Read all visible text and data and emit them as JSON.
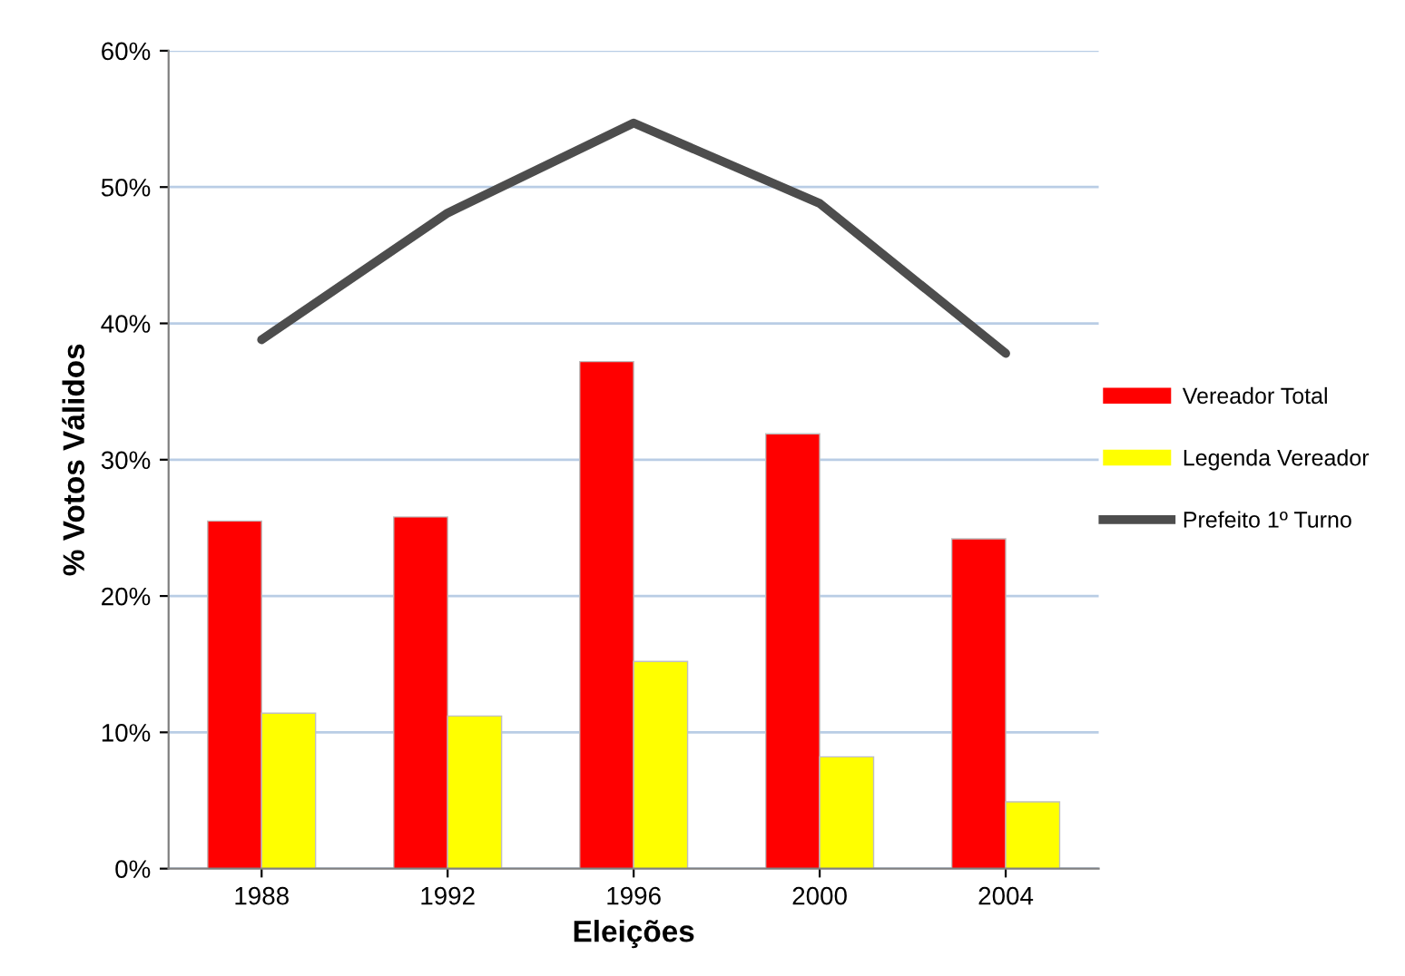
{
  "chart_data": {
    "type": "bar",
    "xlabel": "Eleições",
    "ylabel": "% Votos Válidos",
    "categories": [
      "1988",
      "1992",
      "1996",
      "2000",
      "2004"
    ],
    "series": [
      {
        "name": "Vereador Total",
        "color": "#ff0000",
        "values": [
          25.5,
          25.8,
          37.2,
          31.9,
          24.2
        ]
      },
      {
        "name": "Legenda Vereador",
        "color": "#ffff00",
        "values": [
          11.4,
          11.2,
          15.2,
          8.2,
          4.9
        ]
      },
      {
        "name": "Prefeito 1º Turno",
        "color": "#4d4d4d",
        "type": "line",
        "values": [
          38.8,
          48.1,
          54.7,
          48.8,
          37.8
        ]
      }
    ],
    "ylim": [
      0,
      60
    ],
    "yticks": [
      {
        "value": 0,
        "label": "0%"
      },
      {
        "value": 10,
        "label": "10%"
      },
      {
        "value": 20,
        "label": "20%"
      },
      {
        "value": 30,
        "label": "30%"
      },
      {
        "value": 40,
        "label": "40%"
      },
      {
        "value": 50,
        "label": "50%"
      },
      {
        "value": 60,
        "label": "60%"
      }
    ],
    "grid": "y",
    "legend": "right",
    "marker": "none",
    "line_style": "solid"
  }
}
